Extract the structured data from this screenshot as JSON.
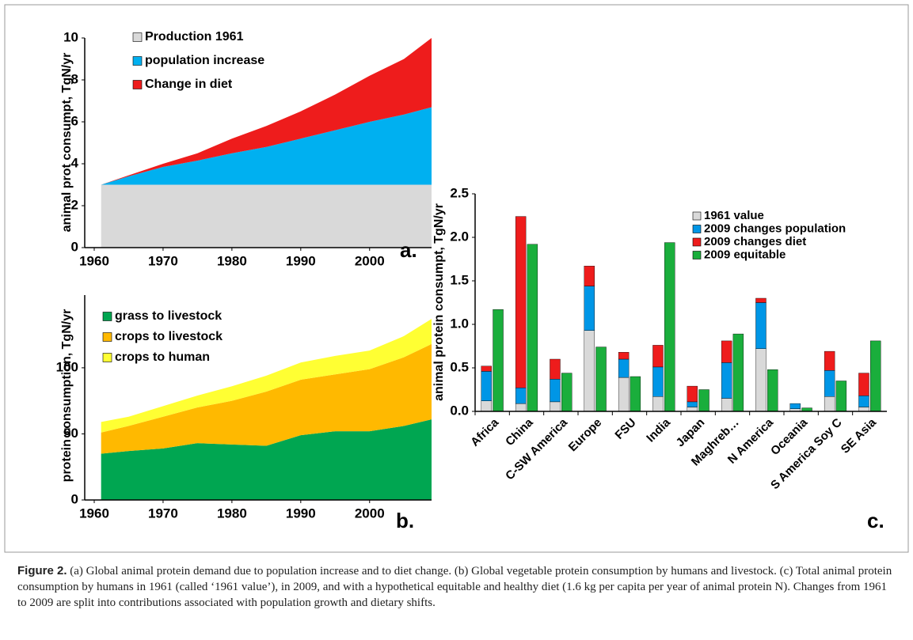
{
  "chart_data": [
    {
      "type": "area",
      "panel_label": "a.",
      "y_label": "animal prot consumpt, TgN/yr",
      "x": [
        1961,
        1965,
        1970,
        1975,
        1980,
        1985,
        1990,
        1995,
        2000,
        2005,
        2009
      ],
      "series": [
        {
          "name": "Production 1961",
          "color": "#d9d9d9",
          "values": [
            3,
            3,
            3,
            3,
            3,
            3,
            3,
            3,
            3,
            3,
            3
          ]
        },
        {
          "name": "population increase",
          "color": "#00b0f0",
          "values": [
            0,
            0.4,
            0.85,
            1.15,
            1.5,
            1.8,
            2.2,
            2.6,
            3.0,
            3.35,
            3.7
          ]
        },
        {
          "name": "Change in diet",
          "color": "#ee1c1c",
          "values": [
            0,
            0.05,
            0.15,
            0.35,
            0.7,
            1.0,
            1.3,
            1.7,
            2.2,
            2.65,
            3.3
          ]
        }
      ],
      "xlim": [
        1960,
        2009
      ],
      "xticks": [
        1960,
        1970,
        1980,
        1990,
        2000
      ],
      "ylim": [
        0,
        10
      ],
      "yticks": [
        0,
        2,
        4,
        6,
        8,
        10
      ]
    },
    {
      "type": "area",
      "panel_label": "b.",
      "y_label": "protein consumption, TgN/yr",
      "x": [
        1961,
        1965,
        1970,
        1975,
        1980,
        1985,
        1990,
        1995,
        2000,
        2005,
        2009
      ],
      "series": [
        {
          "name": "grass to livestock",
          "color": "#00a651",
          "values": [
            35,
            37,
            39,
            43,
            42,
            41,
            49,
            52,
            52,
            56,
            61
          ]
        },
        {
          "name": "crops to livestock",
          "color": "#ffb900",
          "values": [
            16,
            19,
            24,
            27,
            33,
            41,
            42,
            43,
            47,
            52,
            57
          ]
        },
        {
          "name": "crops to human",
          "color": "#ffff33",
          "values": [
            8,
            7,
            8,
            9,
            11,
            12,
            13,
            14,
            14,
            16,
            19
          ]
        }
      ],
      "xlim": [
        1960,
        2009
      ],
      "xticks": [
        1960,
        1970,
        1980,
        1990,
        2000
      ],
      "ylim": [
        0,
        155
      ],
      "yticks": [
        0,
        50,
        100
      ]
    },
    {
      "type": "bar",
      "panel_label": "c.",
      "y_label": "animal protein consumpt, TgN/yr",
      "categories": [
        "Africa",
        "China",
        "C-SW America",
        "Europe",
        "FSU",
        "India",
        "Japan",
        "Maghreb…",
        "N America",
        "Oceania",
        "S America Soy C",
        "SE Asia"
      ],
      "series": [
        {
          "name": "1961 value",
          "color": "#d9d9d9",
          "stack": "left",
          "values": [
            0.12,
            0.09,
            0.11,
            0.93,
            0.39,
            0.17,
            0.05,
            0.15,
            0.72,
            0.03,
            0.17,
            0.05
          ]
        },
        {
          "name": "2009 changes population",
          "color": "#0096e6",
          "stack": "left",
          "values": [
            0.34,
            0.18,
            0.26,
            0.51,
            0.21,
            0.34,
            0.06,
            0.41,
            0.53,
            0.06,
            0.3,
            0.13
          ]
        },
        {
          "name": "2009 changes diet",
          "color": "#ee1c1c",
          "stack": "left",
          "values": [
            0.06,
            1.97,
            0.23,
            0.23,
            0.08,
            0.25,
            0.18,
            0.25,
            0.05,
            0,
            0.22,
            0.26
          ]
        },
        {
          "name": "2009  equitable",
          "color": "#1aae3c",
          "stack": "right",
          "values": [
            1.17,
            1.92,
            0.44,
            0.74,
            0.4,
            1.94,
            0.25,
            0.89,
            0.48,
            0.04,
            0.35,
            0.81
          ]
        }
      ],
      "ylim": [
        0,
        2.5
      ],
      "yticks": [
        {
          "value": 0,
          "label": "0.0"
        },
        0.5,
        {
          "value": 1,
          "label": "1.0"
        },
        1.5,
        {
          "value": 2,
          "label": "2.0"
        },
        2.5
      ]
    }
  ],
  "caption": {
    "label": "Figure 2.",
    "text": " (a) Global animal protein demand due to population increase and to diet change. (b) Global vegetable protein consumption by humans and livestock. (c) Total animal protein consumption by humans in 1961 (called ‘1961 value’), in 2009, and with a hypothetical equitable and healthy diet (1.6 kg per capita per year of animal protein N). Changes from 1961 to 2009 are split into contributions associated with population growth and dietary shifts."
  }
}
